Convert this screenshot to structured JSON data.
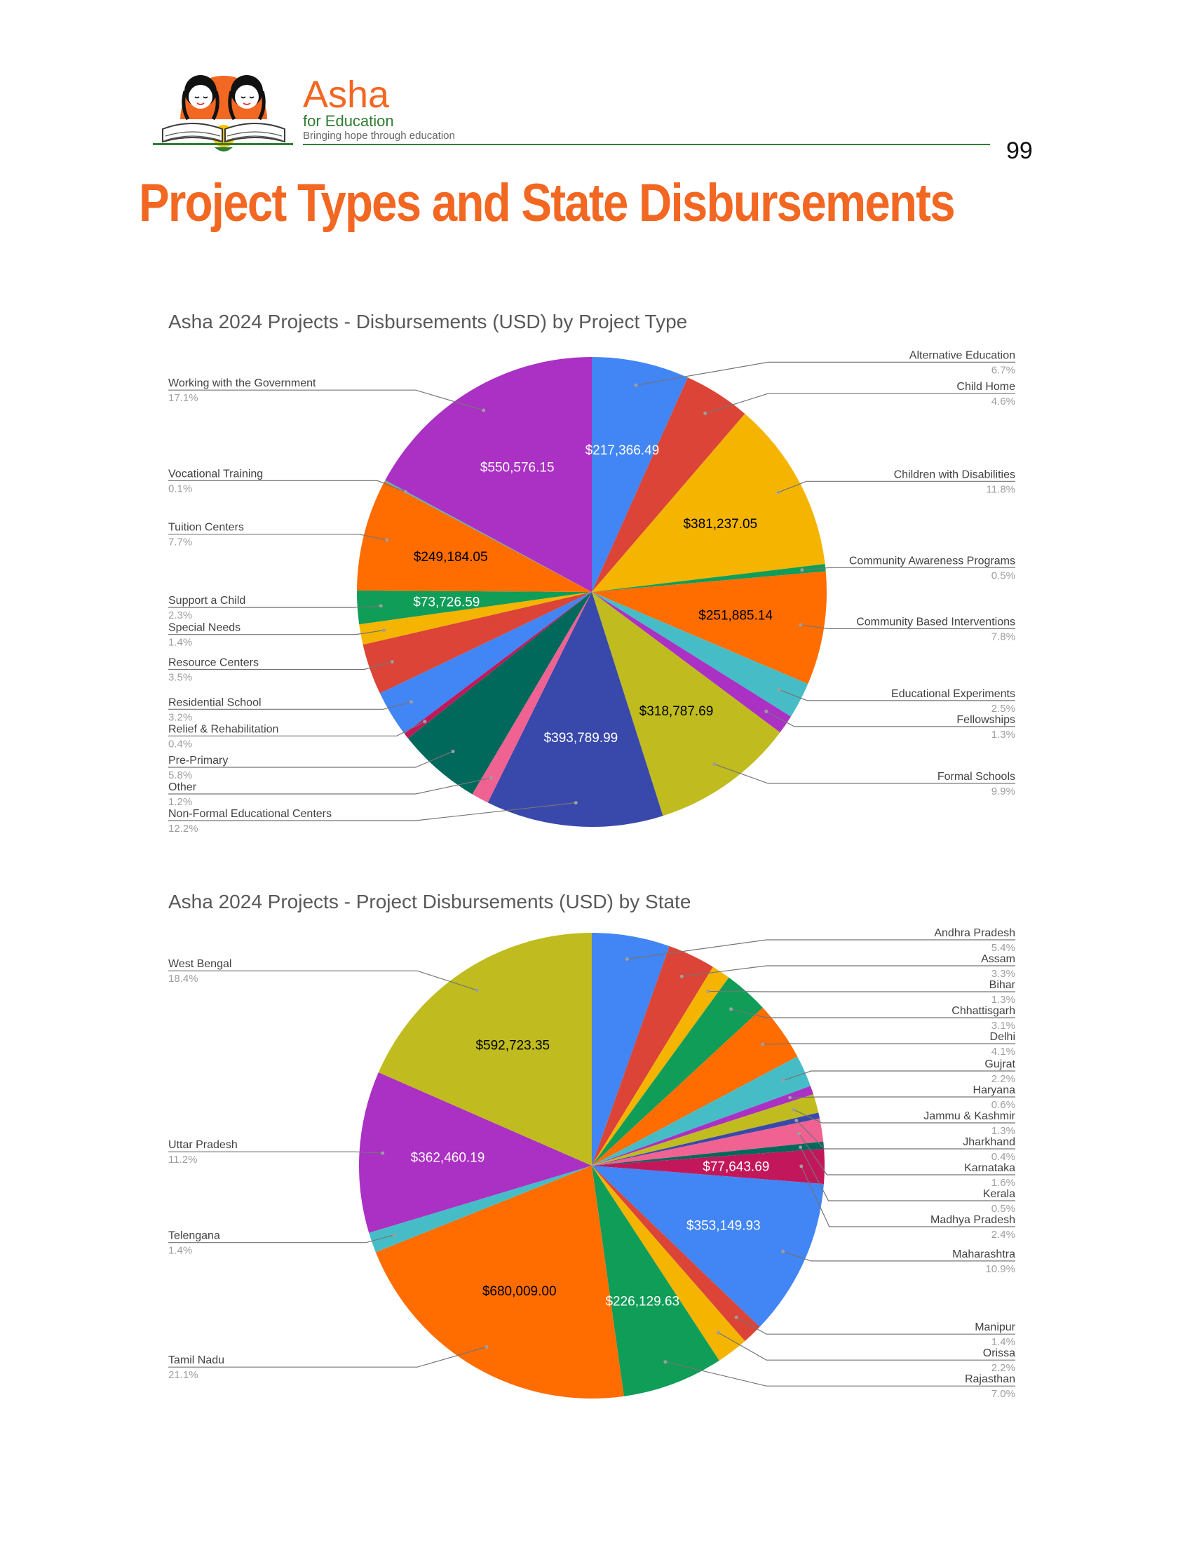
{
  "header": {
    "brand_name": "Asha",
    "brand_sub": "for Education",
    "brand_tagline": "Bringing hope through education",
    "page_number": "99",
    "brand_color": "#f26722",
    "rule_color": "#2e7d32"
  },
  "page_title": "Project Types and State Disbursements",
  "chart_data": [
    {
      "type": "pie",
      "title": "Asha 2024 Projects - Disbursements (USD) by Project Type",
      "start": "top",
      "direction": "clockwise",
      "slices": [
        {
          "label": "Alternative Education",
          "percent": 6.7,
          "value": 217366.49,
          "value_label": "$217,366.49",
          "color": "#4285f4",
          "side": "right",
          "label_color": "#ffffff"
        },
        {
          "label": "Child Home",
          "percent": 4.6,
          "value": null,
          "value_label": "",
          "color": "#db4437",
          "side": "right",
          "label_color": "#ffffff"
        },
        {
          "label": "Children with Disabilities",
          "percent": 11.8,
          "value": 381237.05,
          "value_label": "$381,237.05",
          "color": "#f4b400",
          "side": "right",
          "label_color": "#000000"
        },
        {
          "label": "Community Awareness Programs",
          "percent": 0.5,
          "value": null,
          "value_label": "",
          "color": "#0f9d58",
          "side": "right",
          "label_color": "#ffffff"
        },
        {
          "label": "Community Based Interventions",
          "percent": 7.8,
          "value": 251885.14,
          "value_label": "$251,885.14",
          "color": "#ff6d01",
          "side": "right",
          "label_color": "#000000"
        },
        {
          "label": "Educational Experiments",
          "percent": 2.5,
          "value": null,
          "value_label": "",
          "color": "#46bdc6",
          "side": "right",
          "label_color": "#000000"
        },
        {
          "label": "Fellowships",
          "percent": 1.3,
          "value": null,
          "value_label": "",
          "color": "#ab30c4",
          "side": "right",
          "label_color": "#ffffff"
        },
        {
          "label": "Formal Schools",
          "percent": 9.9,
          "value": 318787.69,
          "value_label": "$318,787.69",
          "color": "#c0bb1e",
          "side": "right",
          "label_color": "#000000"
        },
        {
          "label": "Non-Formal Educational Centers",
          "percent": 12.2,
          "value": 393789.99,
          "value_label": "$393,789.99",
          "color": "#3949ab",
          "side": "left",
          "label_color": "#ffffff"
        },
        {
          "label": "Other",
          "percent": 1.2,
          "value": null,
          "value_label": "",
          "color": "#f06292",
          "side": "left",
          "label_color": "#000000"
        },
        {
          "label": "Pre-Primary",
          "percent": 5.8,
          "value": null,
          "value_label": "",
          "color": "#00695c",
          "side": "left",
          "label_color": "#ffffff"
        },
        {
          "label": "Relief & Rehabilitation",
          "percent": 0.4,
          "value": null,
          "value_label": "",
          "color": "#c2185b",
          "side": "left",
          "label_color": "#ffffff"
        },
        {
          "label": "Residential School",
          "percent": 3.2,
          "value": null,
          "value_label": "",
          "color": "#4285f4",
          "side": "left",
          "label_color": "#ffffff"
        },
        {
          "label": "Resource Centers",
          "percent": 3.5,
          "value": null,
          "value_label": "",
          "color": "#db4437",
          "side": "left",
          "label_color": "#ffffff"
        },
        {
          "label": "Special Needs",
          "percent": 1.4,
          "value": null,
          "value_label": "",
          "color": "#f4b400",
          "side": "left",
          "label_color": "#000000"
        },
        {
          "label": "Support a Child",
          "percent": 2.3,
          "value": 73726.59,
          "value_label": "$73,726.59",
          "color": "#0f9d58",
          "side": "left",
          "label_color": "#ffffff"
        },
        {
          "label": "Tuition Centers",
          "percent": 7.7,
          "value": 249184.05,
          "value_label": "$249,184.05",
          "color": "#ff6d01",
          "side": "left",
          "label_color": "#000000"
        },
        {
          "label": "Vocational Training",
          "percent": 0.1,
          "value": null,
          "value_label": "",
          "color": "#46bdc6",
          "side": "left",
          "label_color": "#000000"
        },
        {
          "label": "Working with the Government",
          "percent": 17.1,
          "value": 550576.15,
          "value_label": "$550,576.15",
          "color": "#ab30c4",
          "side": "left",
          "label_color": "#ffffff"
        }
      ]
    },
    {
      "type": "pie",
      "title": "Asha 2024 Projects - Project Disbursements (USD) by State",
      "start": "top",
      "direction": "clockwise",
      "slices": [
        {
          "label": "Andhra Pradesh",
          "percent": 5.4,
          "value": null,
          "value_label": "",
          "color": "#4285f4",
          "side": "right",
          "label_color": "#ffffff"
        },
        {
          "label": "Assam",
          "percent": 3.3,
          "value": null,
          "value_label": "",
          "color": "#db4437",
          "side": "right",
          "label_color": "#ffffff"
        },
        {
          "label": "Bihar",
          "percent": 1.3,
          "value": null,
          "value_label": "",
          "color": "#f4b400",
          "side": "right",
          "label_color": "#000000"
        },
        {
          "label": "Chhattisgarh",
          "percent": 3.1,
          "value": null,
          "value_label": "",
          "color": "#0f9d58",
          "side": "right",
          "label_color": "#ffffff"
        },
        {
          "label": "Delhi",
          "percent": 4.1,
          "value": null,
          "value_label": "",
          "color": "#ff6d01",
          "side": "right",
          "label_color": "#000000"
        },
        {
          "label": "Gujrat",
          "percent": 2.2,
          "value": null,
          "value_label": "",
          "color": "#46bdc6",
          "side": "right",
          "label_color": "#000000"
        },
        {
          "label": "Haryana",
          "percent": 0.6,
          "value": null,
          "value_label": "",
          "color": "#ab30c4",
          "side": "right",
          "label_color": "#ffffff"
        },
        {
          "label": "Jammu & Kashmir",
          "percent": 1.3,
          "value": null,
          "value_label": "",
          "color": "#c0bb1e",
          "side": "right",
          "label_color": "#000000"
        },
        {
          "label": "Jharkhand",
          "percent": 0.4,
          "value": null,
          "value_label": "",
          "color": "#3949ab",
          "side": "right",
          "label_color": "#ffffff"
        },
        {
          "label": "Karnataka",
          "percent": 1.6,
          "value": null,
          "value_label": "",
          "color": "#f06292",
          "side": "right",
          "label_color": "#000000"
        },
        {
          "label": "Kerala",
          "percent": 0.5,
          "value": null,
          "value_label": "",
          "color": "#00695c",
          "side": "right",
          "label_color": "#ffffff"
        },
        {
          "label": "Madhya Pradesh",
          "percent": 2.4,
          "value": 77643.69,
          "value_label": "$77,643.69",
          "color": "#c2185b",
          "side": "right",
          "label_color": "#ffffff"
        },
        {
          "label": "Maharashtra",
          "percent": 10.9,
          "value": 353149.93,
          "value_label": "$353,149.93",
          "color": "#4285f4",
          "side": "right",
          "label_color": "#ffffff"
        },
        {
          "label": "Manipur",
          "percent": 1.4,
          "value": null,
          "value_label": "",
          "color": "#db4437",
          "side": "right",
          "label_color": "#ffffff"
        },
        {
          "label": "Orissa",
          "percent": 2.2,
          "value": null,
          "value_label": "",
          "color": "#f4b400",
          "side": "right",
          "label_color": "#000000"
        },
        {
          "label": "Rajasthan",
          "percent": 7.0,
          "value": 226129.63,
          "value_label": "$226,129.63",
          "color": "#0f9d58",
          "side": "right",
          "label_color": "#ffffff"
        },
        {
          "label": "Tamil Nadu",
          "percent": 21.1,
          "value": 680009.0,
          "value_label": "$680,009.00",
          "color": "#ff6d01",
          "side": "left",
          "label_color": "#000000"
        },
        {
          "label": "Telengana",
          "percent": 1.4,
          "value": null,
          "value_label": "",
          "color": "#46bdc6",
          "side": "left",
          "label_color": "#000000"
        },
        {
          "label": "Uttar Pradesh",
          "percent": 11.2,
          "value": 362460.19,
          "value_label": "$362,460.19",
          "color": "#ab30c4",
          "side": "left",
          "label_color": "#ffffff"
        },
        {
          "label": "West Bengal",
          "percent": 18.4,
          "value": 592723.35,
          "value_label": "$592,723.35",
          "color": "#c0bb1e",
          "side": "left",
          "label_color": "#000000"
        }
      ]
    }
  ]
}
